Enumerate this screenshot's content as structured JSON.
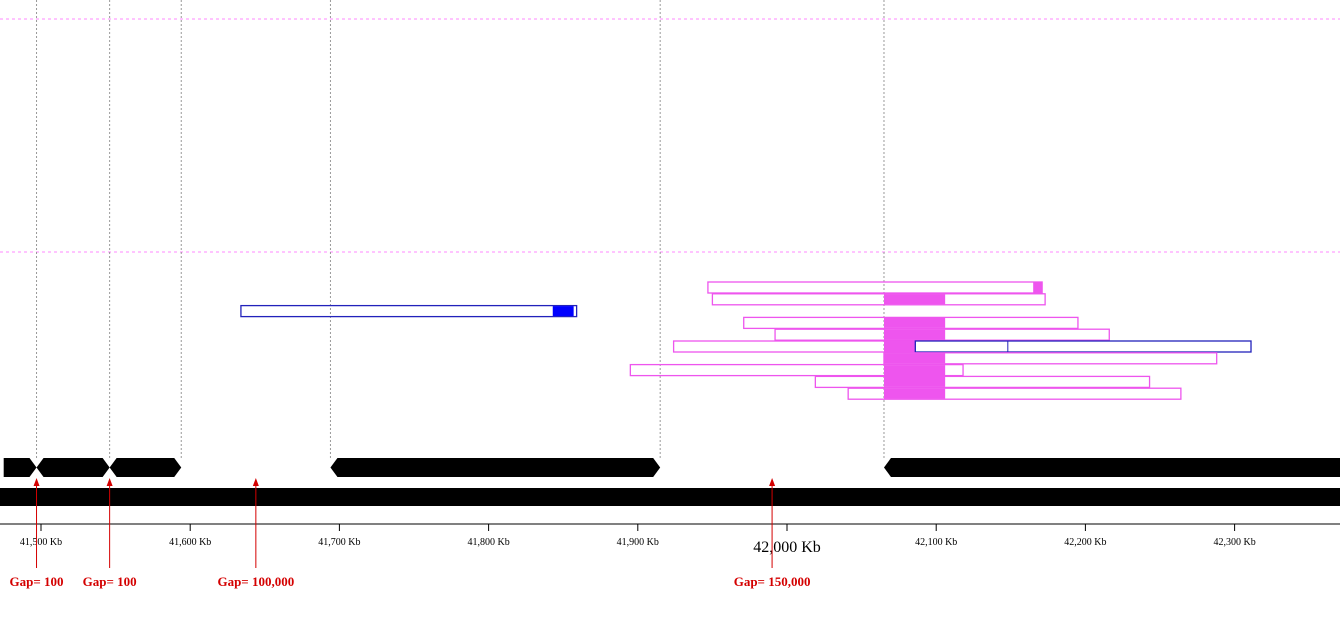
{
  "axis": {
    "unit": "Kb",
    "ticks": [
      {
        "kb": 41500,
        "label": "41,500 Kb",
        "major": false
      },
      {
        "kb": 41600,
        "label": "41,600 Kb",
        "major": false
      },
      {
        "kb": 41700,
        "label": "41,700 Kb",
        "major": false
      },
      {
        "kb": 41800,
        "label": "41,800 Kb",
        "major": false
      },
      {
        "kb": 41900,
        "label": "41,900 Kb",
        "major": false
      },
      {
        "kb": 42000,
        "label": "42,000 Kb",
        "major": true
      },
      {
        "kb": 42100,
        "label": "42,100 Kb",
        "major": false
      },
      {
        "kb": 42200,
        "label": "42,200 Kb",
        "major": false
      },
      {
        "kb": 42300,
        "label": "42,300 Kb",
        "major": false
      }
    ]
  },
  "contigs": [
    {
      "start_kb": 41475,
      "end_kb": 41497
    },
    {
      "start_kb": 41497,
      "end_kb": 41546
    },
    {
      "start_kb": 41546,
      "end_kb": 41594
    },
    {
      "start_kb": 41694,
      "end_kb": 41915
    },
    {
      "start_kb": 42065,
      "end_kb": 42375
    }
  ],
  "gaps": [
    {
      "kb": 41497,
      "label": "Gap= 100"
    },
    {
      "kb": 41546,
      "label": "Gap= 100"
    },
    {
      "kb": 41644,
      "label": "Gap= 100,000"
    },
    {
      "kb": 41990,
      "label": "Gap= 150,000"
    }
  ],
  "boundaries_kb": [
    41497,
    41546,
    41594,
    41694,
    41915,
    42065
  ],
  "clones": [
    {
      "start_kb": 41947,
      "end_kb": 42171,
      "color": "#ee55ee",
      "fills": [
        [
          42165,
          42171
        ]
      ],
      "lane": 0
    },
    {
      "start_kb": 41950,
      "end_kb": 42173,
      "color": "#ee55ee",
      "fills": [
        [
          42065,
          42106
        ]
      ],
      "lane": 1
    },
    {
      "start_kb": 41634,
      "end_kb": 41859,
      "color": "#2222bb",
      "fills": [
        [
          41843,
          41857
        ]
      ],
      "fill_color": "#0000ff",
      "lane": 2
    },
    {
      "start_kb": 41971,
      "end_kb": 42195,
      "color": "#ee55ee",
      "fills": [
        [
          42065,
          42106
        ]
      ],
      "lane": 3
    },
    {
      "start_kb": 41992,
      "end_kb": 42216,
      "color": "#ee55ee",
      "fills": [
        [
          42065,
          42106
        ]
      ],
      "lane": 4
    },
    {
      "start_kb": 41924,
      "end_kb": 42086,
      "color": "#ee55ee",
      "fills": [
        [
          42065,
          42086
        ]
      ],
      "lane": 5
    },
    {
      "start_kb": 42086,
      "end_kb": 42311,
      "color": "#2222bb",
      "fills": [],
      "divider_kb": 42148,
      "lane": 5
    },
    {
      "start_kb": 42065,
      "end_kb": 42288,
      "color": "#ee55ee",
      "fills": [
        [
          42065,
          42106
        ]
      ],
      "lane": 6
    },
    {
      "start_kb": 41895,
      "end_kb": 42118,
      "color": "#ee55ee",
      "fills": [
        [
          42065,
          42106
        ]
      ],
      "lane": 7
    },
    {
      "start_kb": 42019,
      "end_kb": 42243,
      "color": "#ee55ee",
      "fills": [
        [
          42065,
          42106
        ]
      ],
      "lane": 8
    },
    {
      "start_kb": 42041,
      "end_kb": 42264,
      "color": "#ee55ee",
      "fills": [
        [
          42065,
          42106
        ]
      ],
      "lane": 9
    }
  ],
  "colors": {
    "contig": "#000000",
    "gap_marker": "#d40000",
    "pink_guide": "#ff88ff",
    "grey_guide": "#999999"
  }
}
